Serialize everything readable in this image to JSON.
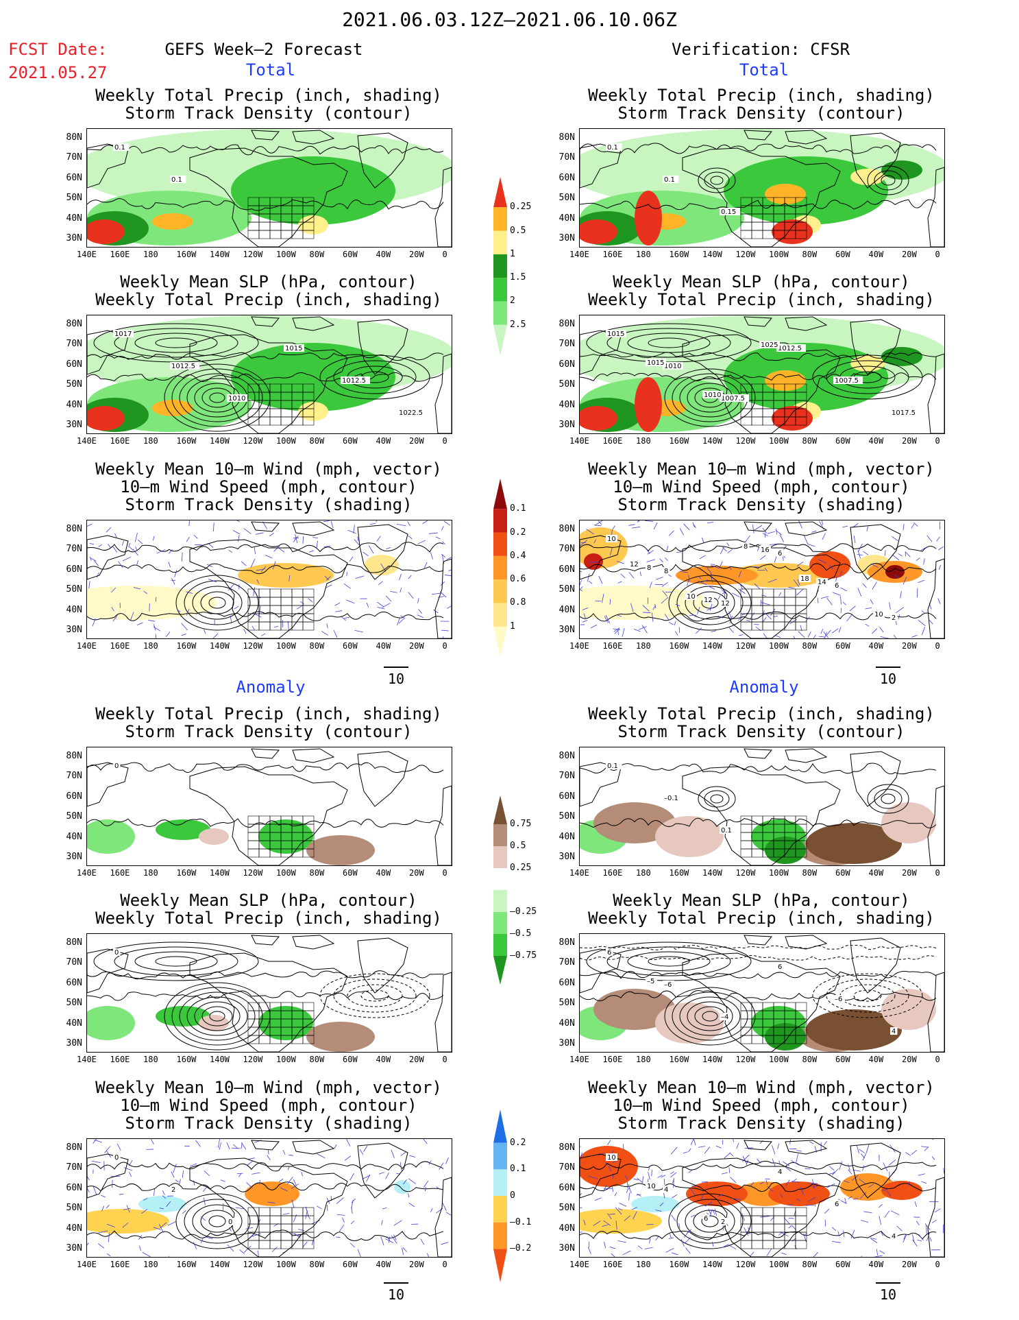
{
  "header": {
    "date_range": "2021.06.03.12Z–2021.06.10.06Z",
    "fcst_label": "FCST Date:",
    "fcst_date": "2021.05.27",
    "left_title": "GEFS Week–2 Forecast",
    "right_title": "Verification: CFSR"
  },
  "sections": {
    "total": "Total",
    "anomaly": "Anomaly"
  },
  "panel_titles": {
    "precip_storm": [
      "Weekly Total Precip (inch, shading)",
      "Storm Track Density (contour)"
    ],
    "slp_precip": [
      "Weekly Mean SLP (hPa, contour)",
      "Weekly Total Precip (inch, shading)"
    ],
    "wind_storm": [
      "Weekly Mean 10–m Wind (mph, vector)",
      "10–m Wind Speed (mph, contour)",
      "Storm Track Density (shading)"
    ]
  },
  "axes": {
    "lat_labels": [
      "80N",
      "70N",
      "60N",
      "50N",
      "40N",
      "30N"
    ],
    "lon_labels": [
      "140E",
      "160E",
      "180",
      "160W",
      "140W",
      "120W",
      "100W",
      "80W",
      "60W",
      "40W",
      "20W",
      "0"
    ]
  },
  "vector_ref": "10",
  "colorbars": {
    "precip_total": {
      "labels": [
        "0.25",
        "0.5",
        "1",
        "1.5",
        "2",
        "2.5"
      ],
      "colors": [
        "#c8f5c0",
        "#7ee67a",
        "#3cc83c",
        "#1e9620",
        "#fff08c",
        "#ffb428",
        "#e8321e"
      ]
    },
    "storm_total": {
      "labels": [
        "0.1",
        "0.2",
        "0.4",
        "0.6",
        "0.8",
        "1"
      ],
      "colors": [
        "#fffac8",
        "#ffe68c",
        "#ffc850",
        "#ff9628",
        "#f05014",
        "#c81e14",
        "#8c0a0a"
      ]
    },
    "precip_anom": {
      "labels": [
        "0.75",
        "0.5",
        "0.25",
        "–0.25",
        "–0.5",
        "–0.75"
      ],
      "colors": [
        "#1e9620",
        "#3cc83c",
        "#7ee67a",
        "#c8f5c0",
        "#ffffff",
        "#e6c8be",
        "#b48c78",
        "#7a5032"
      ]
    },
    "storm_anom": {
      "labels": [
        "0.2",
        "0.1",
        "0",
        "–0.1",
        "–0.2"
      ],
      "colors": [
        "#f05014",
        "#ff9628",
        "#ffd250",
        "#b4f0f5",
        "#64b4f0",
        "#1e6ee6"
      ]
    }
  },
  "panel_notes": {
    "fcst_total_precip": [
      "0.1",
      "0.1"
    ],
    "fcst_total_slp": [
      "1017",
      "1012.5",
      "1010",
      "1015",
      "1012.5",
      "1022.5"
    ],
    "cfsr_total_precip": [
      "0.1",
      "0.1",
      "0.15"
    ],
    "cfsr_total_slp": [
      "1015",
      "1010",
      "1007.5",
      "1012.5",
      "1007.5",
      "1017.5",
      "1015",
      "1010",
      "1025"
    ],
    "cfsr_total_wind": [
      "10",
      "8",
      "12",
      "6",
      "6",
      "2",
      "8",
      "12",
      "16",
      "14",
      "10",
      "12",
      "10",
      "8",
      "18"
    ],
    "fcst_anom_precip": [
      "0"
    ],
    "cfsr_anom_precip": [
      "0.1",
      "–0.1",
      "0.1"
    ],
    "fcst_anom_slp": [
      "0"
    ],
    "cfsr_anom_slp": [
      "6",
      "–6",
      "–4",
      "6",
      "–6",
      "4",
      "–5"
    ],
    "fcst_anom_wind": [
      "0",
      "2",
      "0"
    ],
    "cfsr_anom_wind": [
      "10",
      "4",
      "2",
      "4",
      "6",
      "4",
      "10",
      "6"
    ]
  },
  "colors": {
    "date_red": "#e8202a",
    "section_blue": "#1c3cff",
    "vector_blue": "#3c3cdc"
  }
}
